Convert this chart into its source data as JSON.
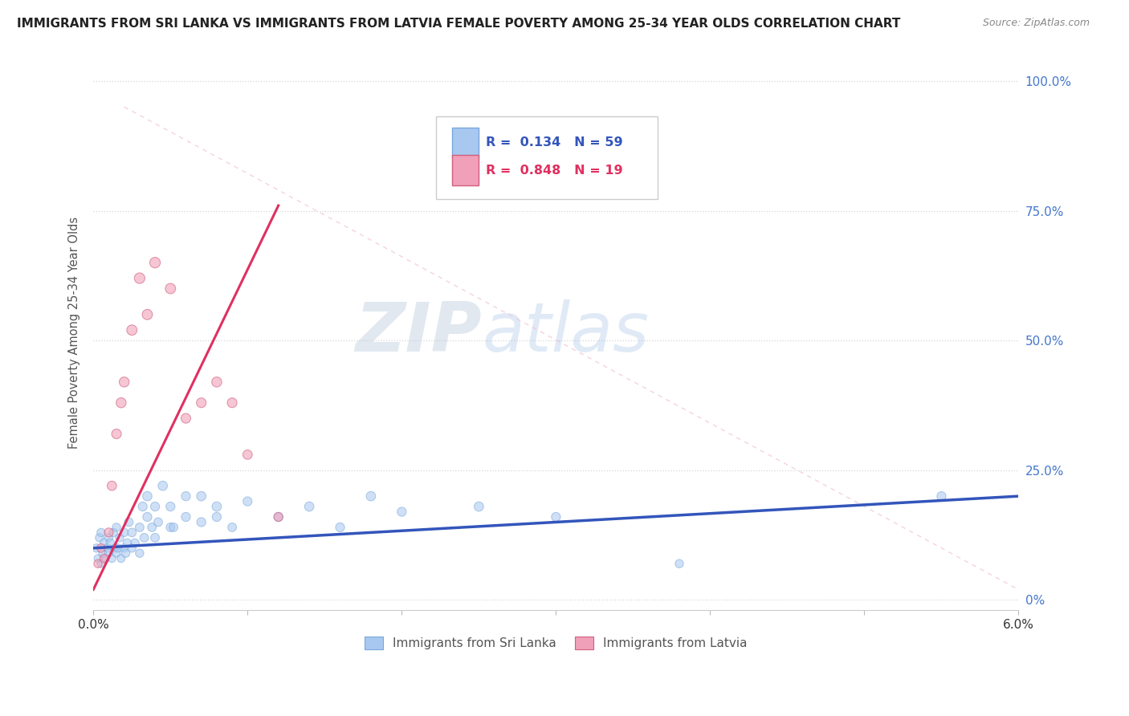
{
  "title": "IMMIGRANTS FROM SRI LANKA VS IMMIGRANTS FROM LATVIA FEMALE POVERTY AMONG 25-34 YEAR OLDS CORRELATION CHART",
  "source": "Source: ZipAtlas.com",
  "ylabel": "Female Poverty Among 25-34 Year Olds",
  "xlim": [
    0.0,
    0.06
  ],
  "ylim": [
    -0.02,
    1.05
  ],
  "xtick_positions": [
    0.0,
    0.01,
    0.02,
    0.03,
    0.04,
    0.05,
    0.06
  ],
  "xtick_labels": [
    "0.0%",
    "",
    "",
    "",
    "",
    "",
    "6.0%"
  ],
  "ytick_vals": [
    0.0,
    0.25,
    0.5,
    0.75,
    1.0
  ],
  "ytick_labels_right": [
    "0%",
    "25.0%",
    "50.0%",
    "75.0%",
    "100.0%"
  ],
  "color_srilanka": "#A8C8F0",
  "color_srilanka_edge": "#7AA8DC",
  "color_latvia": "#F0A0B8",
  "color_latvia_edge": "#D06080",
  "line_color_srilanka": "#3355BB",
  "line_color_latvia": "#E03060",
  "dashed_line_color": "#F0B0C0",
  "R_srilanka": 0.134,
  "N_srilanka": 59,
  "R_latvia": 0.848,
  "N_latvia": 19,
  "legend_label_srilanka": "Immigrants from Sri Lanka",
  "legend_label_latvia": "Immigrants from Latvia",
  "watermark_zip": "ZIP",
  "watermark_atlas": "atlas",
  "background_color": "#ffffff",
  "grid_color": "#cccccc",
  "title_color": "#222222",
  "axis_label_color": "#555555",
  "right_tick_color": "#4477CC",
  "srilanka_scatter": {
    "x": [
      0.0002,
      0.0003,
      0.0004,
      0.0005,
      0.0005,
      0.0006,
      0.0007,
      0.0008,
      0.0009,
      0.001,
      0.001,
      0.0011,
      0.0012,
      0.0013,
      0.0014,
      0.0015,
      0.0015,
      0.0016,
      0.0017,
      0.0018,
      0.002,
      0.002,
      0.0021,
      0.0022,
      0.0023,
      0.0025,
      0.0025,
      0.0027,
      0.003,
      0.003,
      0.0032,
      0.0033,
      0.0035,
      0.0035,
      0.0038,
      0.004,
      0.004,
      0.0042,
      0.0045,
      0.005,
      0.005,
      0.0052,
      0.006,
      0.006,
      0.007,
      0.007,
      0.008,
      0.008,
      0.009,
      0.01,
      0.012,
      0.014,
      0.016,
      0.018,
      0.02,
      0.025,
      0.03,
      0.038,
      0.055
    ],
    "y": [
      0.1,
      0.08,
      0.12,
      0.07,
      0.13,
      0.09,
      0.11,
      0.08,
      0.1,
      0.09,
      0.12,
      0.11,
      0.08,
      0.13,
      0.1,
      0.09,
      0.14,
      0.1,
      0.12,
      0.08,
      0.13,
      0.1,
      0.09,
      0.11,
      0.15,
      0.1,
      0.13,
      0.11,
      0.09,
      0.14,
      0.18,
      0.12,
      0.16,
      0.2,
      0.14,
      0.12,
      0.18,
      0.15,
      0.22,
      0.14,
      0.18,
      0.14,
      0.2,
      0.16,
      0.15,
      0.2,
      0.16,
      0.18,
      0.14,
      0.19,
      0.16,
      0.18,
      0.14,
      0.2,
      0.17,
      0.18,
      0.16,
      0.07,
      0.2
    ],
    "sizes": [
      55,
      50,
      55,
      50,
      55,
      50,
      55,
      50,
      55,
      55,
      55,
      55,
      50,
      55,
      55,
      50,
      55,
      55,
      55,
      50,
      55,
      55,
      55,
      55,
      60,
      55,
      60,
      55,
      55,
      60,
      65,
      60,
      65,
      70,
      60,
      60,
      65,
      60,
      70,
      60,
      65,
      60,
      65,
      65,
      65,
      70,
      65,
      70,
      60,
      65,
      65,
      70,
      65,
      70,
      65,
      70,
      65,
      55,
      65
    ]
  },
  "latvia_scatter": {
    "x": [
      0.0003,
      0.0005,
      0.0007,
      0.001,
      0.0012,
      0.0015,
      0.0018,
      0.002,
      0.0025,
      0.003,
      0.0035,
      0.004,
      0.005,
      0.006,
      0.007,
      0.008,
      0.009,
      0.01,
      0.012
    ],
    "y": [
      0.07,
      0.1,
      0.08,
      0.13,
      0.22,
      0.32,
      0.38,
      0.42,
      0.52,
      0.62,
      0.55,
      0.65,
      0.6,
      0.35,
      0.38,
      0.42,
      0.38,
      0.28,
      0.16
    ],
    "sizes": [
      55,
      60,
      60,
      65,
      70,
      75,
      80,
      80,
      85,
      90,
      85,
      90,
      85,
      75,
      75,
      80,
      75,
      70,
      65
    ]
  },
  "srilanka_trend": {
    "x": [
      0.0,
      0.06
    ],
    "y": [
      0.1,
      0.2
    ]
  },
  "latvia_trend": {
    "x": [
      0.0,
      0.012
    ],
    "y": [
      0.02,
      0.76
    ]
  },
  "diag_line": {
    "x": [
      0.002,
      0.06
    ],
    "y": [
      0.95,
      0.02
    ]
  }
}
